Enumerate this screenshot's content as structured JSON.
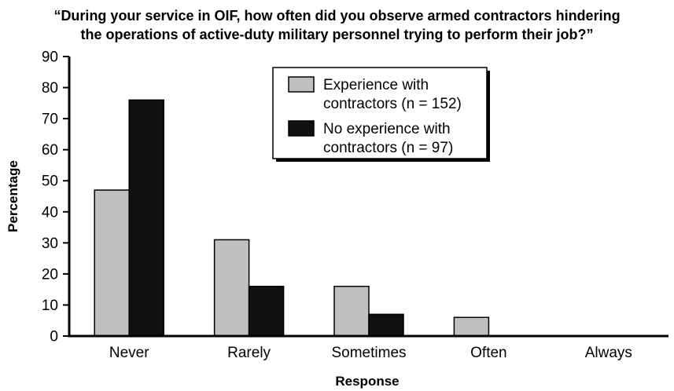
{
  "chart_data": {
    "type": "bar",
    "title_lines": [
      "“During your service in OIF, how often did you observe armed contractors hindering",
      "the operations of active-duty military personnel trying to perform their job?”"
    ],
    "xlabel": "Response",
    "ylabel": "Percentage",
    "categories": [
      "Never",
      "Rarely",
      "Sometimes",
      "Often",
      "Always"
    ],
    "series": [
      {
        "name": "Experience with contractors (n = 152)",
        "legend_lines": [
          "Experience with",
          "contractors (n = 152)"
        ],
        "color": "#c0c0c0",
        "values": [
          47,
          31,
          16,
          6,
          0
        ]
      },
      {
        "name": "No experience with contractors (n = 97)",
        "legend_lines": [
          "No experience with",
          "contractors (n = 97)"
        ],
        "color": "#111111",
        "values": [
          76,
          16,
          7,
          0,
          0
        ]
      }
    ],
    "ylim": [
      0,
      90
    ],
    "yticks": [
      0,
      10,
      20,
      30,
      40,
      50,
      60,
      70,
      80,
      90
    ],
    "grid": false,
    "legend_position": "top-center"
  }
}
